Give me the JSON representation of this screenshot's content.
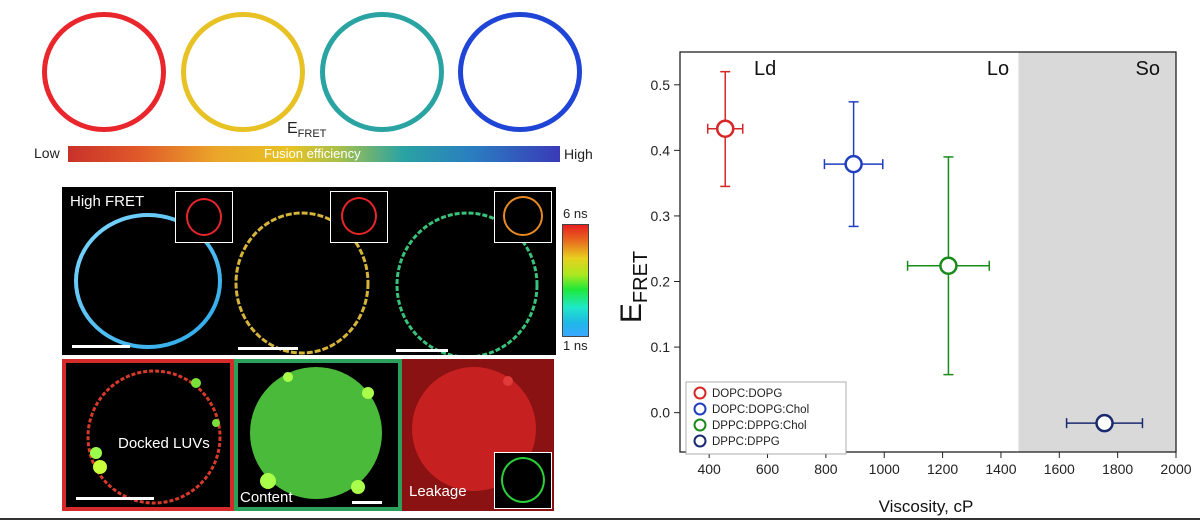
{
  "colors": {
    "ring_red": "#e8262b",
    "ring_yellow": "#e8c224",
    "ring_teal": "#2aa3a3",
    "ring_blue": "#1f45d6",
    "series_red": "#d62728",
    "series_blue": "#1f3fbf",
    "series_green": "#1a8a1a",
    "series_navy": "#1a2a6e",
    "shade": "#d9d9d9"
  },
  "fusion_bar": {
    "efret_label": "E",
    "efret_sub": "FRET",
    "low": "Low",
    "high": "High",
    "center": "Fusion efficiency"
  },
  "lifetime_panel": {
    "title": "High FRET",
    "scale_top": "6 ns",
    "scale_bottom": "1 ns"
  },
  "bottom_panels": {
    "docked": "Docked LUVs",
    "content": "Content",
    "leakage": "Leakage"
  },
  "chart_data": {
    "type": "scatter",
    "xlabel": "Viscosity, cP",
    "ylabel": "E",
    "ylabel_sub": "FRET",
    "xlim": [
      300,
      2000
    ],
    "ylim": [
      -0.06,
      0.55
    ],
    "xticks": [
      400,
      600,
      800,
      1000,
      1200,
      1400,
      1600,
      1800,
      2000
    ],
    "yticks": [
      0.0,
      0.1,
      0.2,
      0.3,
      0.4,
      0.5
    ],
    "ytick_labels": [
      "0.0",
      "0.1",
      "0.2",
      "0.3",
      "0.4",
      "0.5"
    ],
    "regions": [
      {
        "label": "Ld",
        "shaded": false
      },
      {
        "label": "Lo",
        "shaded": false
      },
      {
        "label": "So",
        "shaded": true,
        "x_start": 1460
      }
    ],
    "legend_position": "bottom-left",
    "series": [
      {
        "name": "DOPC:DOPG",
        "color": "#d62728",
        "x": 455,
        "y": 0.433,
        "xerr": 60,
        "yerr_low": 0.088,
        "yerr_high": 0.087
      },
      {
        "name": "DOPC:DOPG:Chol",
        "color": "#1f3fbf",
        "x": 895,
        "y": 0.379,
        "xerr": 100,
        "yerr_low": 0.095,
        "yerr_high": 0.095
      },
      {
        "name": "DPPC:DPPG:Chol",
        "color": "#1a8a1a",
        "x": 1220,
        "y": 0.224,
        "xerr": 140,
        "yerr_low": 0.166,
        "yerr_high": 0.166
      },
      {
        "name": "DPPC:DPPG",
        "color": "#1a2a6e",
        "x": 1755,
        "y": -0.016,
        "xerr": 130,
        "yerr_low": 0.006,
        "yerr_high": 0.006
      }
    ]
  }
}
